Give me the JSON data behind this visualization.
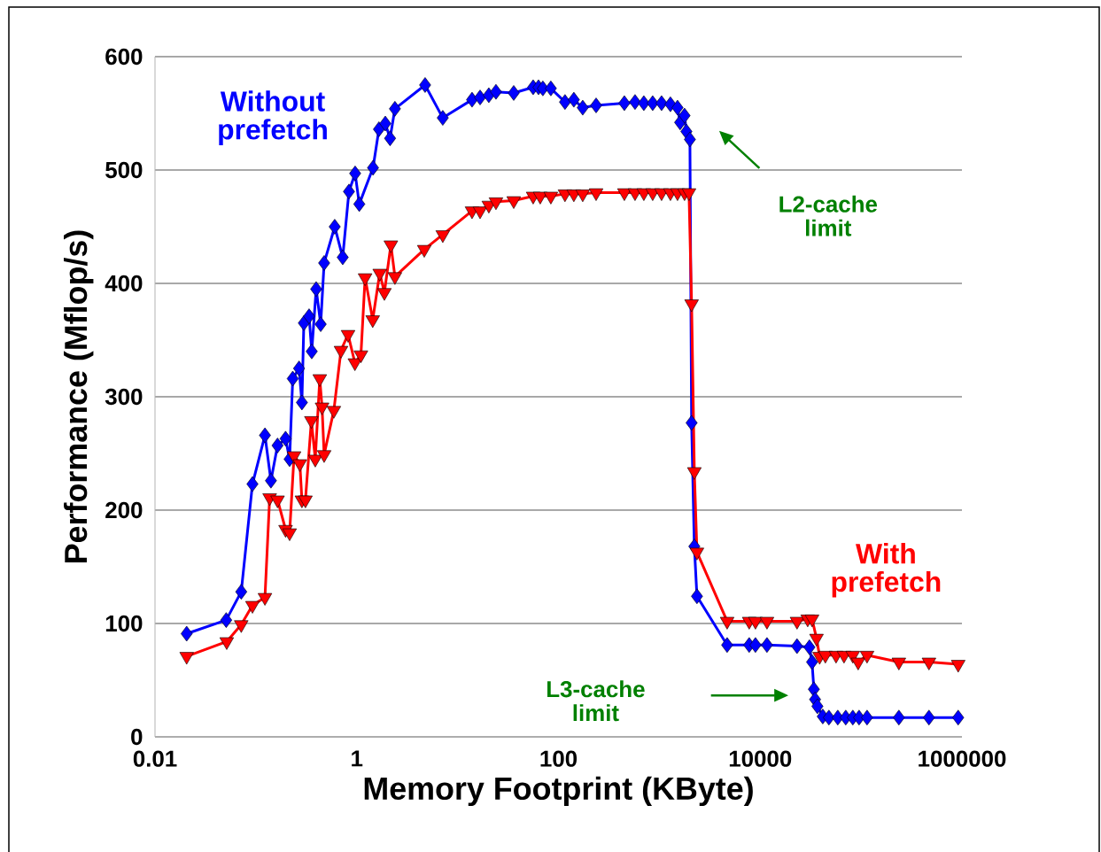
{
  "chart_data": {
    "type": "line",
    "xlabel": "Memory Footprint (KByte)",
    "ylabel": "Performance (Mflop/s)",
    "log": "x",
    "xlim": [
      0.01,
      1000000
    ],
    "xticks": [
      0.01,
      1,
      100,
      10000,
      1000000
    ],
    "ylim": [
      0,
      600
    ],
    "yticks": [
      0,
      100,
      200,
      300,
      400,
      500,
      600
    ],
    "grid": "y",
    "legend": false,
    "annotations": [
      "L2-cache limit",
      "L3-cache limit"
    ],
    "series": [
      {
        "name": "Without prefetch",
        "color": "#0000ff",
        "marker": "diamond",
        "x": [
          0.0206,
          0.0508,
          0.0716,
          0.0925,
          0.123,
          0.141,
          0.164,
          0.197,
          0.216,
          0.232,
          0.268,
          0.286,
          0.299,
          0.337,
          0.358,
          0.396,
          0.439,
          0.475,
          0.605,
          0.726,
          0.837,
          0.964,
          1.06,
          1.45,
          1.66,
          1.92,
          2.14,
          2.39,
          4.76,
          7.13,
          13.9,
          16.7,
          20.4,
          24.0,
          36.0,
          56.1,
          63.4,
          70.0,
          84.0,
          116,
          142,
          174,
          236,
          450,
          574,
          702,
          859,
          1052,
          1288,
          1514,
          1607,
          1778,
          1854,
          2009,
          2089,
          2223,
          2360,
          4699,
          7780,
          8970,
          11670,
          23170,
          30760,
          32660,
          34040,
          35000,
          36900,
          41690,
          47970,
          58750,
          70470,
          82800,
          95500,
          114600,
          237000,
          471000,
          918000
        ],
        "values": [
          91,
          103,
          128,
          223,
          266,
          226,
          257,
          263,
          245,
          316,
          325,
          295,
          365,
          371,
          340,
          395,
          364,
          418,
          450,
          423,
          481,
          497,
          470,
          502,
          536,
          541,
          528,
          554,
          575,
          546,
          562,
          564,
          566,
          569,
          568,
          573,
          573,
          572,
          572,
          560,
          562,
          555,
          557,
          559,
          560,
          559,
          559,
          559,
          558,
          555,
          542,
          548,
          534,
          527,
          277,
          168,
          124,
          81,
          81,
          81,
          81,
          80,
          79,
          66,
          42,
          33,
          27,
          18,
          17,
          17,
          17,
          17,
          17,
          17,
          17,
          17,
          17
        ]
      },
      {
        "name": "With prefetch",
        "color": "#ff0000",
        "marker": "triangle",
        "x": [
          0.0206,
          0.0514,
          0.0716,
          0.0925,
          0.123,
          0.137,
          0.164,
          0.197,
          0.216,
          0.239,
          0.273,
          0.286,
          0.31,
          0.355,
          0.388,
          0.43,
          0.453,
          0.475,
          0.593,
          0.698,
          0.82,
          0.959,
          1.1,
          1.21,
          1.44,
          1.69,
          1.88,
          2.18,
          2.39,
          4.67,
          7.13,
          13.9,
          16.7,
          20.4,
          24.0,
          36.0,
          56.1,
          65.9,
          84.0,
          116,
          142,
          174,
          236,
          450,
          574,
          702,
          859,
          1052,
          1288,
          1514,
          1778,
          1968,
          2089,
          2223,
          2360,
          4699,
          7780,
          8970,
          11670,
          23170,
          29580,
          32660,
          36140,
          38810,
          44260,
          56490,
          67740,
          82800,
          93540,
          114600,
          237000,
          471000,
          918000
        ],
        "values": [
          71,
          84,
          99,
          116,
          123,
          211,
          209,
          183,
          180,
          248,
          241,
          209,
          209,
          279,
          245,
          316,
          291,
          249,
          288,
          341,
          355,
          330,
          337,
          405,
          368,
          409,
          392,
          434,
          406,
          430,
          443,
          464,
          464,
          469,
          472,
          473,
          477,
          477,
          477,
          479,
          479,
          479,
          480,
          480,
          480,
          480,
          480,
          480,
          480,
          480,
          480,
          480,
          382,
          234,
          163,
          102,
          102,
          102,
          102,
          102,
          104,
          104,
          87,
          71,
          72,
          72,
          72,
          72,
          66,
          72,
          66,
          66,
          64
        ]
      }
    ]
  }
}
